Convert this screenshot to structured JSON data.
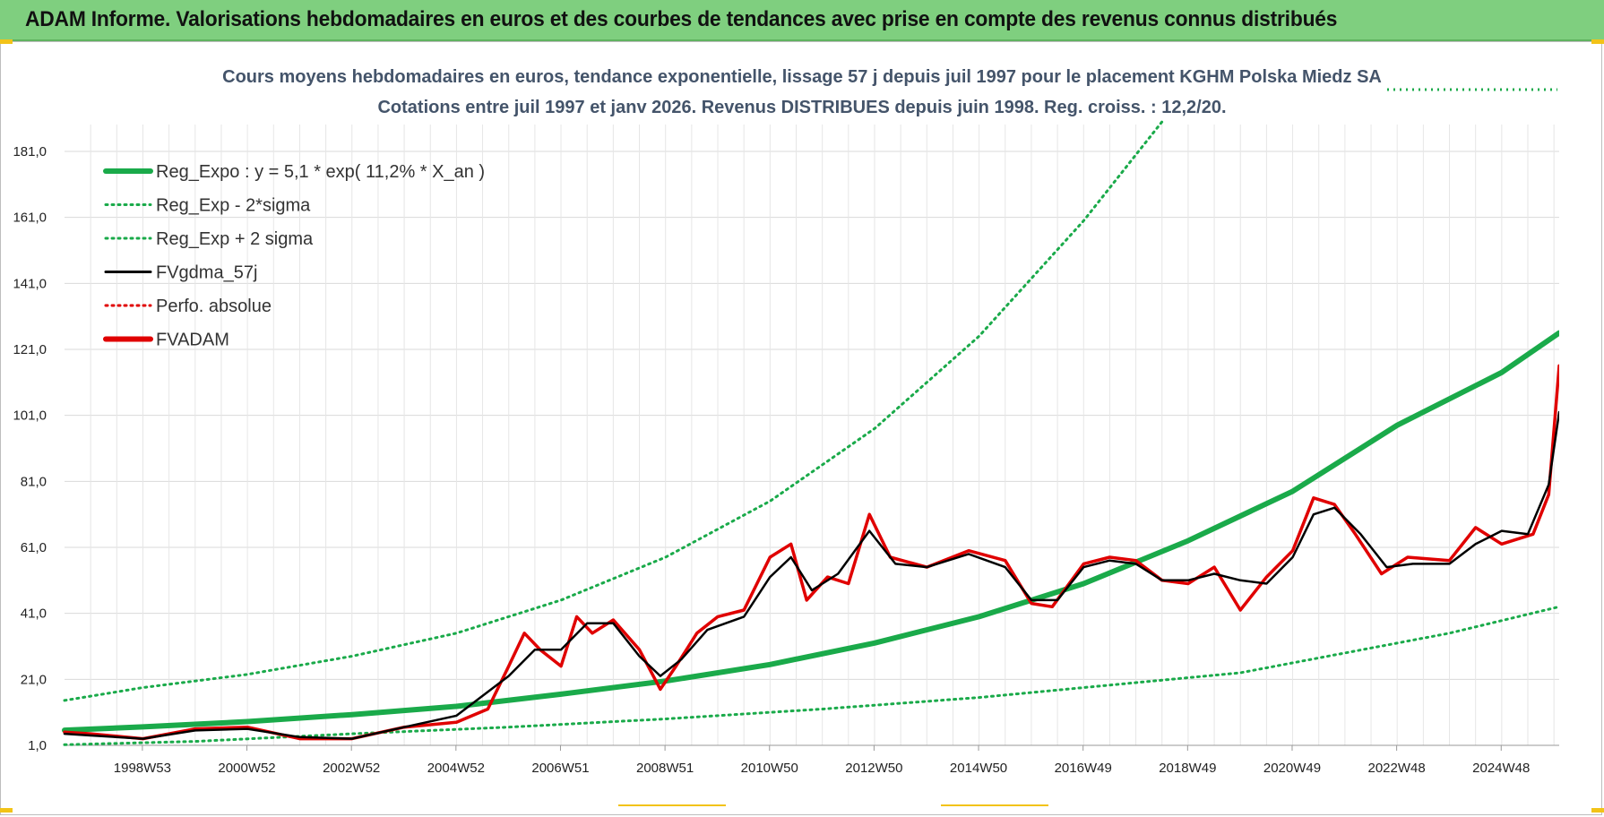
{
  "header": {
    "title": "ADAM Informe. Valorisations hebdomadaires en euros et des courbes de tendances avec prise en compte des revenus connus distribués"
  },
  "colors": {
    "banner": "#7fcf7f",
    "reg_expo": "#1aaa4a",
    "sigma": "#1aaa4a",
    "fvgdma": "#000000",
    "perfo": "#e00000",
    "fvadam": "#e00000"
  },
  "chart_data": {
    "type": "line",
    "title_line1": "Cours moyens hebdomadaires en euros, tendance exponentielle, lissage 57 j depuis juil 1997 pour le placement KGHM Polska Miedz SA",
    "title_line2": "Cotations entre juil 1997 et janv 2026. Revenus DISTRIBUES depuis juin 1998. Reg. croiss. : 12,2/20.",
    "xlabel": "",
    "ylabel": "",
    "xlim": [
      1997.5,
      2026.1
    ],
    "ylim": [
      1.0,
      181.0
    ],
    "y_ticks": [
      "181,0",
      "161,0",
      "141,0",
      "121,0",
      "101,0",
      "81,0",
      "61,0",
      "41,0",
      "21,0",
      "1,0"
    ],
    "x_ticks": [
      "1998W53",
      "2000W52",
      "2002W52",
      "2004W52",
      "2006W51",
      "2008W51",
      "2010W50",
      "2012W50",
      "2014W50",
      "2016W49",
      "2018W49",
      "2020W49",
      "2022W48",
      "2024W48"
    ],
    "legend": [
      {
        "key": "reg",
        "label": "Reg_Expo : y = 5,1 * exp( 11,2% *  X_an )",
        "style": "solid-thick",
        "color": "#1aaa4a"
      },
      {
        "key": "lo",
        "label": "Reg_Exp - 2*sigma",
        "style": "dotted",
        "color": "#1aaa4a"
      },
      {
        "key": "hi",
        "label": "Reg_Exp + 2 sigma",
        "style": "dotted",
        "color": "#1aaa4a"
      },
      {
        "key": "fvg",
        "label": "FVgdma_57j",
        "style": "solid",
        "color": "#000000"
      },
      {
        "key": "perf",
        "label": "Perfo. absolue",
        "style": "dotted",
        "color": "#e00000"
      },
      {
        "key": "fva",
        "label": "FVADAM",
        "style": "solid-thick",
        "color": "#e00000"
      }
    ],
    "series": [
      {
        "name": "Reg_Expo",
        "points": [
          [
            1997.5,
            5.6
          ],
          [
            1999,
            6.6
          ],
          [
            2001,
            8.2
          ],
          [
            2003,
            10.3
          ],
          [
            2005,
            12.8
          ],
          [
            2007,
            16.5
          ],
          [
            2009,
            20.5
          ],
          [
            2011,
            25.5
          ],
          [
            2013,
            32.0
          ],
          [
            2015,
            40.0
          ],
          [
            2017,
            50.0
          ],
          [
            2019,
            63.0
          ],
          [
            2021,
            78.0
          ],
          [
            2023,
            98.0
          ],
          [
            2025,
            114.0
          ],
          [
            2026.1,
            126.0
          ]
        ]
      },
      {
        "name": "Reg_Exp - 2*sigma",
        "points": [
          [
            1997.5,
            1.2
          ],
          [
            2000,
            2.2
          ],
          [
            2003,
            4.5
          ],
          [
            2006,
            6.5
          ],
          [
            2009,
            9.0
          ],
          [
            2012,
            12.0
          ],
          [
            2015,
            15.5
          ],
          [
            2018,
            20.0
          ],
          [
            2020,
            23.0
          ],
          [
            2022,
            29.0
          ],
          [
            2024,
            35.0
          ],
          [
            2026.1,
            43.0
          ]
        ]
      },
      {
        "name": "Reg_Exp + 2 sigma",
        "points": [
          [
            1997.5,
            14.6
          ],
          [
            1999,
            18.5
          ],
          [
            2001,
            22.5
          ],
          [
            2003,
            28.0
          ],
          [
            2005,
            35.0
          ],
          [
            2007,
            45.0
          ],
          [
            2009,
            58.0
          ],
          [
            2011,
            75.0
          ],
          [
            2013,
            97.0
          ],
          [
            2015,
            125.0
          ],
          [
            2017,
            160.0
          ],
          [
            2018.5,
            190.0
          ]
        ]
      },
      {
        "name": "FVgdma_57j",
        "points": [
          [
            1997.5,
            4.5
          ],
          [
            1998,
            4.0
          ],
          [
            1999,
            3.0
          ],
          [
            2000,
            5.5
          ],
          [
            2001,
            6.0
          ],
          [
            2002,
            3.5
          ],
          [
            2003,
            3.0
          ],
          [
            2004,
            6.5
          ],
          [
            2005,
            10.0
          ],
          [
            2006,
            22.0
          ],
          [
            2006.5,
            30.0
          ],
          [
            2007,
            30.0
          ],
          [
            2007.5,
            38.0
          ],
          [
            2008,
            38.0
          ],
          [
            2008.5,
            28.0
          ],
          [
            2008.9,
            22.0
          ],
          [
            2009.3,
            27.0
          ],
          [
            2009.8,
            36.0
          ],
          [
            2010.5,
            40.0
          ],
          [
            2011,
            52.0
          ],
          [
            2011.4,
            58.0
          ],
          [
            2011.8,
            48.0
          ],
          [
            2012.3,
            53.0
          ],
          [
            2012.9,
            66.0
          ],
          [
            2013.4,
            56.0
          ],
          [
            2014,
            55.0
          ],
          [
            2014.8,
            59.0
          ],
          [
            2015.5,
            55.0
          ],
          [
            2016,
            45.0
          ],
          [
            2016.5,
            45.0
          ],
          [
            2017,
            55.0
          ],
          [
            2017.5,
            57.0
          ],
          [
            2018,
            56.0
          ],
          [
            2018.5,
            51.0
          ],
          [
            2019,
            51.0
          ],
          [
            2019.5,
            53.0
          ],
          [
            2020,
            51.0
          ],
          [
            2020.5,
            50.0
          ],
          [
            2021,
            58.0
          ],
          [
            2021.4,
            71.0
          ],
          [
            2021.8,
            73.0
          ],
          [
            2022.3,
            65.0
          ],
          [
            2022.8,
            55.0
          ],
          [
            2023.3,
            56.0
          ],
          [
            2024,
            56.0
          ],
          [
            2024.5,
            62.0
          ],
          [
            2025,
            66.0
          ],
          [
            2025.5,
            65.0
          ],
          [
            2025.9,
            80.0
          ],
          [
            2026.1,
            102.0
          ]
        ]
      },
      {
        "name": "FVADAM",
        "points": [
          [
            1997.5,
            5.0
          ],
          [
            1998,
            4.5
          ],
          [
            1999,
            3.0
          ],
          [
            2000,
            6.0
          ],
          [
            2001,
            6.5
          ],
          [
            2002,
            3.0
          ],
          [
            2003,
            3.0
          ],
          [
            2004,
            6.5
          ],
          [
            2005,
            8.0
          ],
          [
            2005.6,
            12.0
          ],
          [
            2006,
            25.0
          ],
          [
            2006.3,
            35.0
          ],
          [
            2006.6,
            30.0
          ],
          [
            2007,
            25.0
          ],
          [
            2007.3,
            40.0
          ],
          [
            2007.6,
            35.0
          ],
          [
            2008,
            39.0
          ],
          [
            2008.5,
            30.0
          ],
          [
            2008.9,
            18.0
          ],
          [
            2009.2,
            25.0
          ],
          [
            2009.6,
            35.0
          ],
          [
            2010,
            40.0
          ],
          [
            2010.5,
            42.0
          ],
          [
            2011,
            58.0
          ],
          [
            2011.4,
            62.0
          ],
          [
            2011.7,
            45.0
          ],
          [
            2012.1,
            52.0
          ],
          [
            2012.5,
            50.0
          ],
          [
            2012.9,
            71.0
          ],
          [
            2013.3,
            58.0
          ],
          [
            2014,
            55.0
          ],
          [
            2014.8,
            60.0
          ],
          [
            2015.5,
            57.0
          ],
          [
            2016,
            44.0
          ],
          [
            2016.4,
            43.0
          ],
          [
            2017,
            56.0
          ],
          [
            2017.5,
            58.0
          ],
          [
            2018,
            57.0
          ],
          [
            2018.5,
            51.0
          ],
          [
            2019,
            50.0
          ],
          [
            2019.5,
            55.0
          ],
          [
            2020,
            42.0
          ],
          [
            2020.5,
            52.0
          ],
          [
            2021,
            60.0
          ],
          [
            2021.4,
            76.0
          ],
          [
            2021.8,
            74.0
          ],
          [
            2022.2,
            65.0
          ],
          [
            2022.7,
            53.0
          ],
          [
            2023.2,
            58.0
          ],
          [
            2024,
            57.0
          ],
          [
            2024.5,
            67.0
          ],
          [
            2025,
            62.0
          ],
          [
            2025.6,
            65.0
          ],
          [
            2025.9,
            77.0
          ],
          [
            2026.1,
            116.0
          ]
        ]
      }
    ]
  }
}
